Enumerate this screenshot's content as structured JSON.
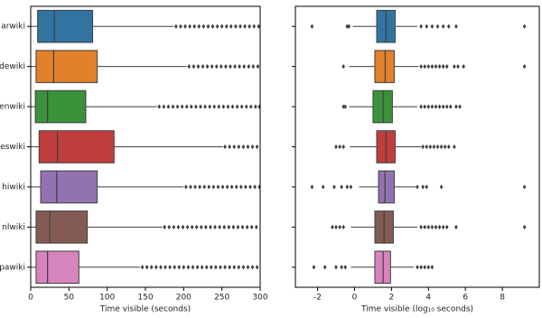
{
  "chart_data": [
    {
      "type": "box",
      "xlabel": "Time visible (seconds)",
      "xlim": [
        0,
        300
      ],
      "xticks": [
        0,
        50,
        100,
        150,
        200,
        250,
        300
      ],
      "categories": [
        "arwiki",
        "dewiki",
        "enwiki",
        "eswiki",
        "hiwiki",
        "nlwiki",
        "pawiki"
      ],
      "boxes": [
        {
          "color": "#3274a1",
          "whislo": 0,
          "q1": 9,
          "median": 31,
          "q3": 81,
          "whishi": 187,
          "fliers": [
            190,
            196,
            202,
            208,
            214,
            220,
            226,
            232,
            238,
            244,
            250,
            256,
            262,
            268,
            274,
            280,
            286,
            292,
            298
          ]
        },
        {
          "color": "#e1812c",
          "whislo": 0,
          "q1": 7,
          "median": 30,
          "q3": 87,
          "whishi": 204,
          "fliers": [
            207,
            213,
            219,
            225,
            231,
            237,
            243,
            249,
            255,
            261,
            267,
            273,
            279,
            285,
            291,
            297
          ]
        },
        {
          "color": "#3a923a",
          "whislo": 0,
          "q1": 6,
          "median": 22,
          "q3": 72,
          "whishi": 165,
          "fliers": [
            168,
            174,
            180,
            186,
            192,
            198,
            204,
            210,
            216,
            222,
            228,
            234,
            240,
            246,
            252,
            258,
            264,
            270,
            276,
            282,
            288,
            294,
            299
          ]
        },
        {
          "color": "#c03d3e",
          "whislo": 0,
          "q1": 11,
          "median": 35,
          "q3": 109,
          "whishi": 251,
          "fliers": [
            254,
            260,
            266,
            272,
            278,
            284,
            290,
            296
          ]
        },
        {
          "color": "#9372b2",
          "whislo": 0,
          "q1": 13,
          "median": 34,
          "q3": 87,
          "whishi": 200,
          "fliers": [
            203,
            209,
            215,
            221,
            227,
            233,
            239,
            245,
            251,
            257,
            263,
            269,
            275,
            281,
            287,
            293,
            299
          ]
        },
        {
          "color": "#845b53",
          "whislo": 0,
          "q1": 7,
          "median": 25,
          "q3": 74,
          "whishi": 172,
          "fliers": [
            175,
            181,
            187,
            193,
            199,
            205,
            211,
            217,
            223,
            229,
            235,
            241,
            247,
            253,
            259,
            265,
            271,
            277,
            283,
            289,
            295
          ]
        },
        {
          "color": "#d684bd",
          "whislo": 0,
          "q1": 7,
          "median": 22,
          "q3": 63,
          "whishi": 143,
          "fliers": [
            146,
            152,
            158,
            164,
            170,
            176,
            182,
            188,
            194,
            200,
            206,
            212,
            218,
            224,
            230,
            236,
            242,
            248,
            254,
            260,
            266,
            272,
            278,
            284,
            290,
            296
          ]
        }
      ]
    },
    {
      "type": "box",
      "xlabel": "Time visible (log₁₀ seconds)",
      "xlim": [
        -3.2,
        10
      ],
      "xticks": [
        -2,
        0,
        2,
        4,
        6,
        8
      ],
      "boxes": [
        {
          "color": "#3274a1",
          "whislo": -0.1,
          "q1": 1.2,
          "median": 1.7,
          "q3": 2.2,
          "whishi": 3.4,
          "fliers": [
            -2.3,
            -0.4,
            -0.3,
            3.6,
            3.9,
            4.2,
            4.5,
            4.8,
            5.1,
            5.5,
            9.2
          ]
        },
        {
          "color": "#e1812c",
          "whislo": -0.3,
          "q1": 1.1,
          "median": 1.66,
          "q3": 2.15,
          "whishi": 3.46,
          "fliers": [
            -0.6,
            3.6,
            3.8,
            4.0,
            4.2,
            4.4,
            4.6,
            4.8,
            5.0,
            5.4,
            5.6,
            5.9,
            9.2
          ]
        },
        {
          "color": "#3a923a",
          "whislo": -0.3,
          "q1": 1.0,
          "median": 1.55,
          "q3": 2.05,
          "whishi": 3.4,
          "fliers": [
            -0.6,
            -0.5,
            3.6,
            3.8,
            4.0,
            4.2,
            4.4,
            4.6,
            4.8,
            5.0,
            5.2,
            5.5,
            5.7
          ]
        },
        {
          "color": "#c03d3e",
          "whislo": -0.25,
          "q1": 1.2,
          "median": 1.7,
          "q3": 2.2,
          "whishi": 3.6,
          "fliers": [
            -1.0,
            -0.8,
            -0.6,
            3.7,
            3.9,
            4.1,
            4.3,
            4.5,
            4.7,
            4.9,
            5.1,
            5.4
          ]
        },
        {
          "color": "#9372b2",
          "whislo": 0.25,
          "q1": 1.3,
          "median": 1.65,
          "q3": 2.15,
          "whishi": 3.3,
          "fliers": [
            -2.3,
            -1.7,
            -1.1,
            -0.7,
            -0.4,
            -0.2,
            3.4,
            3.7,
            3.9,
            4.7,
            9.2
          ]
        },
        {
          "color": "#845b53",
          "whislo": -0.2,
          "q1": 1.1,
          "median": 1.6,
          "q3": 2.1,
          "whishi": 3.4,
          "fliers": [
            -1.2,
            -1.0,
            -0.8,
            -0.6,
            3.6,
            3.8,
            4.0,
            4.2,
            4.4,
            4.6,
            4.8,
            5.0,
            5.5,
            9.2
          ]
        },
        {
          "color": "#d684bd",
          "whislo": -0.2,
          "q1": 1.1,
          "median": 1.55,
          "q3": 1.95,
          "whishi": 3.2,
          "fliers": [
            -2.2,
            -1.6,
            -1.0,
            -0.7,
            -0.5,
            3.4,
            3.6,
            3.8,
            4.0,
            4.2
          ]
        }
      ]
    }
  ]
}
